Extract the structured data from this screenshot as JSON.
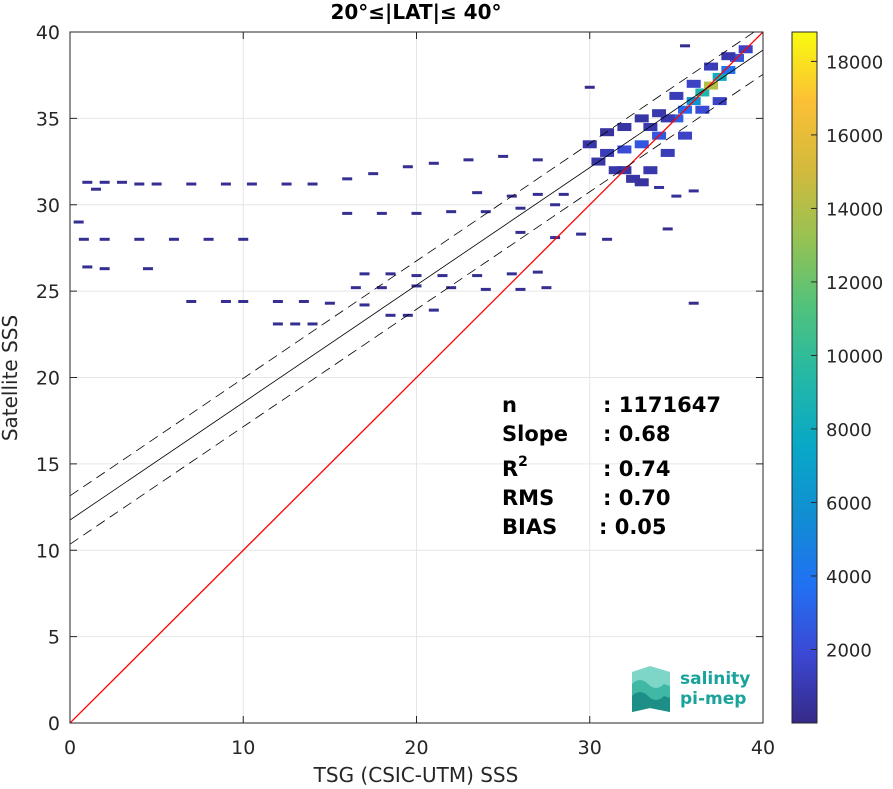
{
  "chart_data": {
    "type": "heatmap",
    "title": "20°≤|LAT|≤ 40°",
    "xlabel": "TSG (CSIC-UTM) SSS",
    "ylabel": "Satellite SSS",
    "xlim": [
      0,
      40
    ],
    "ylim": [
      0,
      40
    ],
    "xticks": [
      0,
      10,
      20,
      30,
      40
    ],
    "yticks": [
      0,
      5,
      10,
      15,
      20,
      25,
      30,
      35,
      40
    ],
    "grid": true,
    "colorbar": {
      "range": [
        0,
        18800
      ],
      "ticks": [
        2000,
        4000,
        6000,
        8000,
        10000,
        12000,
        14000,
        16000,
        18000
      ],
      "colormap": "parula"
    },
    "stats": [
      {
        "label": "n",
        "value": ": 1171647"
      },
      {
        "label": "Slope",
        "value": ": 0.68"
      },
      {
        "label": "R",
        "sup": "2",
        "value": ": 0.74"
      },
      {
        "label": "RMS",
        "value": ": 0.70"
      },
      {
        "label": "BIAS",
        "value": ": 0.05"
      }
    ],
    "lines": {
      "identity": {
        "x": [
          0,
          40
        ],
        "y": [
          0,
          40
        ],
        "color": "#ff0000"
      },
      "fit": {
        "intercept": 11.75,
        "slope": 0.68,
        "color": "#000000"
      },
      "fit_band": {
        "offset": 1.4,
        "style": "dashed",
        "color": "#000000"
      }
    },
    "density_points": [
      [
        1.0,
        31.3,
        300
      ],
      [
        1.5,
        30.9,
        300
      ],
      [
        2.0,
        31.3,
        300
      ],
      [
        3.0,
        31.3,
        300
      ],
      [
        4.0,
        31.2,
        300
      ],
      [
        5.0,
        31.2,
        300
      ],
      [
        7.0,
        31.2,
        300
      ],
      [
        9.0,
        31.2,
        300
      ],
      [
        10.5,
        31.2,
        300
      ],
      [
        12.5,
        31.2,
        300
      ],
      [
        14.0,
        31.2,
        300
      ],
      [
        16.0,
        31.5,
        300
      ],
      [
        17.5,
        31.8,
        300
      ],
      [
        19.5,
        32.2,
        300
      ],
      [
        21.0,
        32.4,
        300
      ],
      [
        23.0,
        32.6,
        300
      ],
      [
        25.0,
        32.8,
        300
      ],
      [
        27.0,
        32.6,
        300
      ],
      [
        0.8,
        28.0,
        300
      ],
      [
        2.0,
        28.0,
        300
      ],
      [
        4.0,
        28.0,
        300
      ],
      [
        6.0,
        28.0,
        300
      ],
      [
        8.0,
        28.0,
        300
      ],
      [
        10.0,
        28.0,
        300
      ],
      [
        0.5,
        29.0,
        300
      ],
      [
        1.0,
        26.4,
        300
      ],
      [
        2.0,
        26.3,
        300
      ],
      [
        4.5,
        26.3,
        300
      ],
      [
        7.0,
        24.4,
        300
      ],
      [
        9.0,
        24.4,
        300
      ],
      [
        10.0,
        24.4,
        300
      ],
      [
        12.0,
        24.4,
        300
      ],
      [
        13.5,
        24.4,
        300
      ],
      [
        15.0,
        24.3,
        300
      ],
      [
        17.0,
        24.2,
        300
      ],
      [
        18.5,
        23.6,
        300
      ],
      [
        19.5,
        23.6,
        300
      ],
      [
        21.0,
        23.9,
        300
      ],
      [
        12.0,
        23.1,
        300
      ],
      [
        13.0,
        23.1,
        300
      ],
      [
        14.0,
        23.1,
        300
      ],
      [
        17.0,
        26.0,
        300
      ],
      [
        18.5,
        26.0,
        300
      ],
      [
        20.0,
        25.9,
        300
      ],
      [
        21.5,
        25.9,
        300
      ],
      [
        23.5,
        25.9,
        300
      ],
      [
        25.5,
        26.0,
        300
      ],
      [
        27.0,
        26.1,
        300
      ],
      [
        16.5,
        25.2,
        300
      ],
      [
        18.0,
        25.2,
        300
      ],
      [
        20.0,
        25.3,
        300
      ],
      [
        22.0,
        25.2,
        300
      ],
      [
        24.0,
        25.1,
        300
      ],
      [
        26.0,
        25.1,
        300
      ],
      [
        27.5,
        25.2,
        300
      ],
      [
        16.0,
        29.5,
        300
      ],
      [
        18.0,
        29.5,
        300
      ],
      [
        20.0,
        29.5,
        300
      ],
      [
        22.0,
        29.6,
        300
      ],
      [
        24.0,
        29.6,
        300
      ],
      [
        26.0,
        29.8,
        300
      ],
      [
        28.0,
        30.0,
        300
      ],
      [
        23.5,
        30.7,
        300
      ],
      [
        25.5,
        30.5,
        300
      ],
      [
        27.0,
        30.6,
        300
      ],
      [
        28.5,
        30.6,
        300
      ],
      [
        26.0,
        28.4,
        300
      ],
      [
        28.0,
        28.1,
        300
      ],
      [
        29.5,
        28.3,
        300
      ],
      [
        31.0,
        28.0,
        300
      ],
      [
        30.0,
        33.5,
        800
      ],
      [
        31.0,
        33.0,
        1200
      ],
      [
        32.0,
        33.2,
        2000
      ],
      [
        33.0,
        33.5,
        2500
      ],
      [
        34.0,
        34.0,
        2500
      ],
      [
        35.0,
        35.0,
        3000
      ],
      [
        35.5,
        35.5,
        3500
      ],
      [
        36.0,
        36.0,
        6000
      ],
      [
        36.5,
        36.5,
        9000
      ],
      [
        37.0,
        36.9,
        14000
      ],
      [
        37.5,
        37.4,
        8000
      ],
      [
        38.0,
        37.8,
        4000
      ],
      [
        38.5,
        38.5,
        2500
      ],
      [
        39.0,
        39.0,
        1500
      ],
      [
        30.5,
        32.5,
        800
      ],
      [
        31.5,
        32.0,
        800
      ],
      [
        32.5,
        31.5,
        700
      ],
      [
        33.5,
        32.0,
        900
      ],
      [
        34.5,
        33.0,
        1200
      ],
      [
        35.5,
        34.0,
        1500
      ],
      [
        36.5,
        35.5,
        2000
      ],
      [
        37.5,
        36.0,
        1500
      ],
      [
        33.0,
        35.0,
        700
      ],
      [
        34.0,
        35.3,
        900
      ],
      [
        35.0,
        36.3,
        1200
      ],
      [
        36.0,
        37.0,
        1500
      ],
      [
        37.0,
        38.0,
        1200
      ],
      [
        38.0,
        38.6,
        900
      ],
      [
        31.0,
        34.2,
        600
      ],
      [
        32.0,
        34.5,
        700
      ],
      [
        33.5,
        34.5,
        900
      ],
      [
        34.5,
        35.0,
        1000
      ],
      [
        32.0,
        32.0,
        700
      ],
      [
        33.0,
        31.3,
        600
      ],
      [
        34.0,
        31.0,
        500
      ],
      [
        35.0,
        30.5,
        400
      ],
      [
        36.0,
        30.8,
        400
      ]
    ],
    "isolated_points": [
      [
        36.0,
        24.3,
        200
      ],
      [
        34.5,
        28.6,
        200
      ],
      [
        30.0,
        36.8,
        200
      ],
      [
        35.5,
        39.2,
        200
      ]
    ]
  },
  "logo": {
    "line1": "salinity",
    "line2": "pi-mep"
  }
}
